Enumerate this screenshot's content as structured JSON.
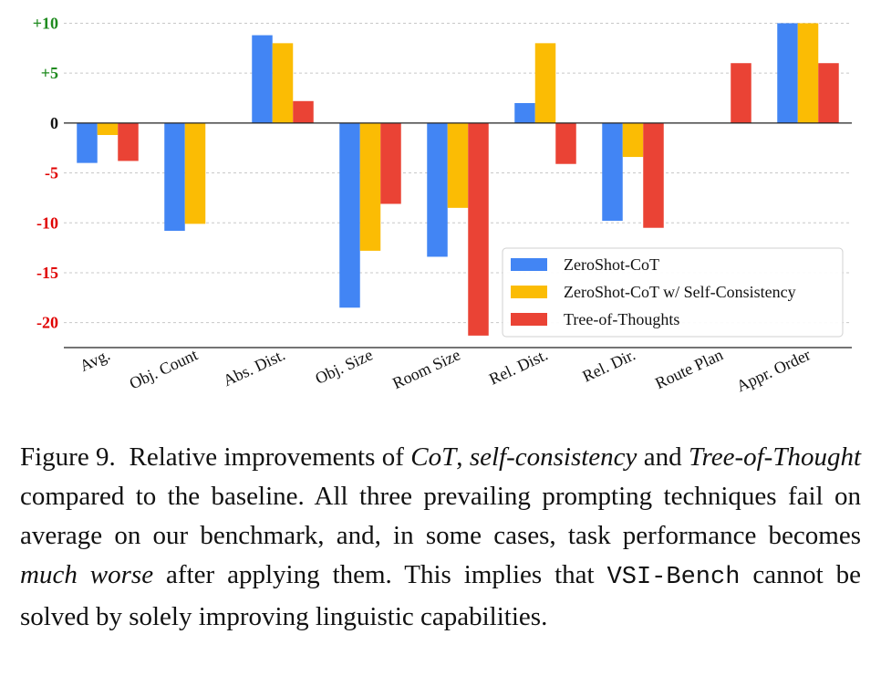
{
  "chart_data": {
    "type": "bar",
    "categories": [
      "Avg.",
      "Obj. Count",
      "Abs. Dist.",
      "Obj. Size",
      "Room Size",
      "Rel. Dist.",
      "Rel. Dir.",
      "Route Plan",
      "Appr. Order"
    ],
    "series": [
      {
        "name": "ZeroShot-CoT",
        "color": "#4285f4",
        "values": [
          -4.0,
          -10.8,
          8.8,
          -18.5,
          -13.4,
          2.0,
          -9.8,
          0.0,
          10.0
        ]
      },
      {
        "name": "ZeroShot-CoT w/ Self-Consistency",
        "color": "#fbbc04",
        "values": [
          -1.2,
          -10.1,
          8.0,
          -12.8,
          -8.5,
          8.0,
          -3.4,
          0.0,
          10.0
        ]
      },
      {
        "name": "Tree-of-Thoughts",
        "color": "#ea4335",
        "values": [
          -3.8,
          0.0,
          2.2,
          -8.1,
          -21.3,
          -4.1,
          -10.5,
          6.0,
          6.0
        ]
      }
    ],
    "yticks": [
      {
        "value": 10,
        "label": "+10",
        "color": "#1e8a1e"
      },
      {
        "value": 5,
        "label": "+5",
        "color": "#1e8a1e"
      },
      {
        "value": 0,
        "label": "0",
        "color": "#111111"
      },
      {
        "value": -5,
        "label": "-5",
        "color": "#e00000"
      },
      {
        "value": -10,
        "label": "-10",
        "color": "#e00000"
      },
      {
        "value": -15,
        "label": "-15",
        "color": "#e00000"
      },
      {
        "value": -20,
        "label": "-20",
        "color": "#e00000"
      }
    ],
    "ylim": [
      -22.5,
      10.5
    ],
    "grid": true,
    "legend_position": "lower-right",
    "xlabel": "",
    "ylabel": ""
  },
  "caption": {
    "label": "Figure 9.",
    "t1": "Relative improvements of ",
    "cot": "CoT",
    "t2": ", ",
    "sc": "self-consistency",
    "t3": " and ",
    "tot": "Tree-of-Thought",
    "t4": " compared to the baseline. All three prevailing prompting techniques fail on average on our benchmark, and, in some cases, task performance becomes ",
    "worse": "much worse",
    "t5": " after applying them. This implies that ",
    "bench": "VSI-Bench",
    "t6": " cannot be solved by solely improving linguistic capabilities."
  }
}
